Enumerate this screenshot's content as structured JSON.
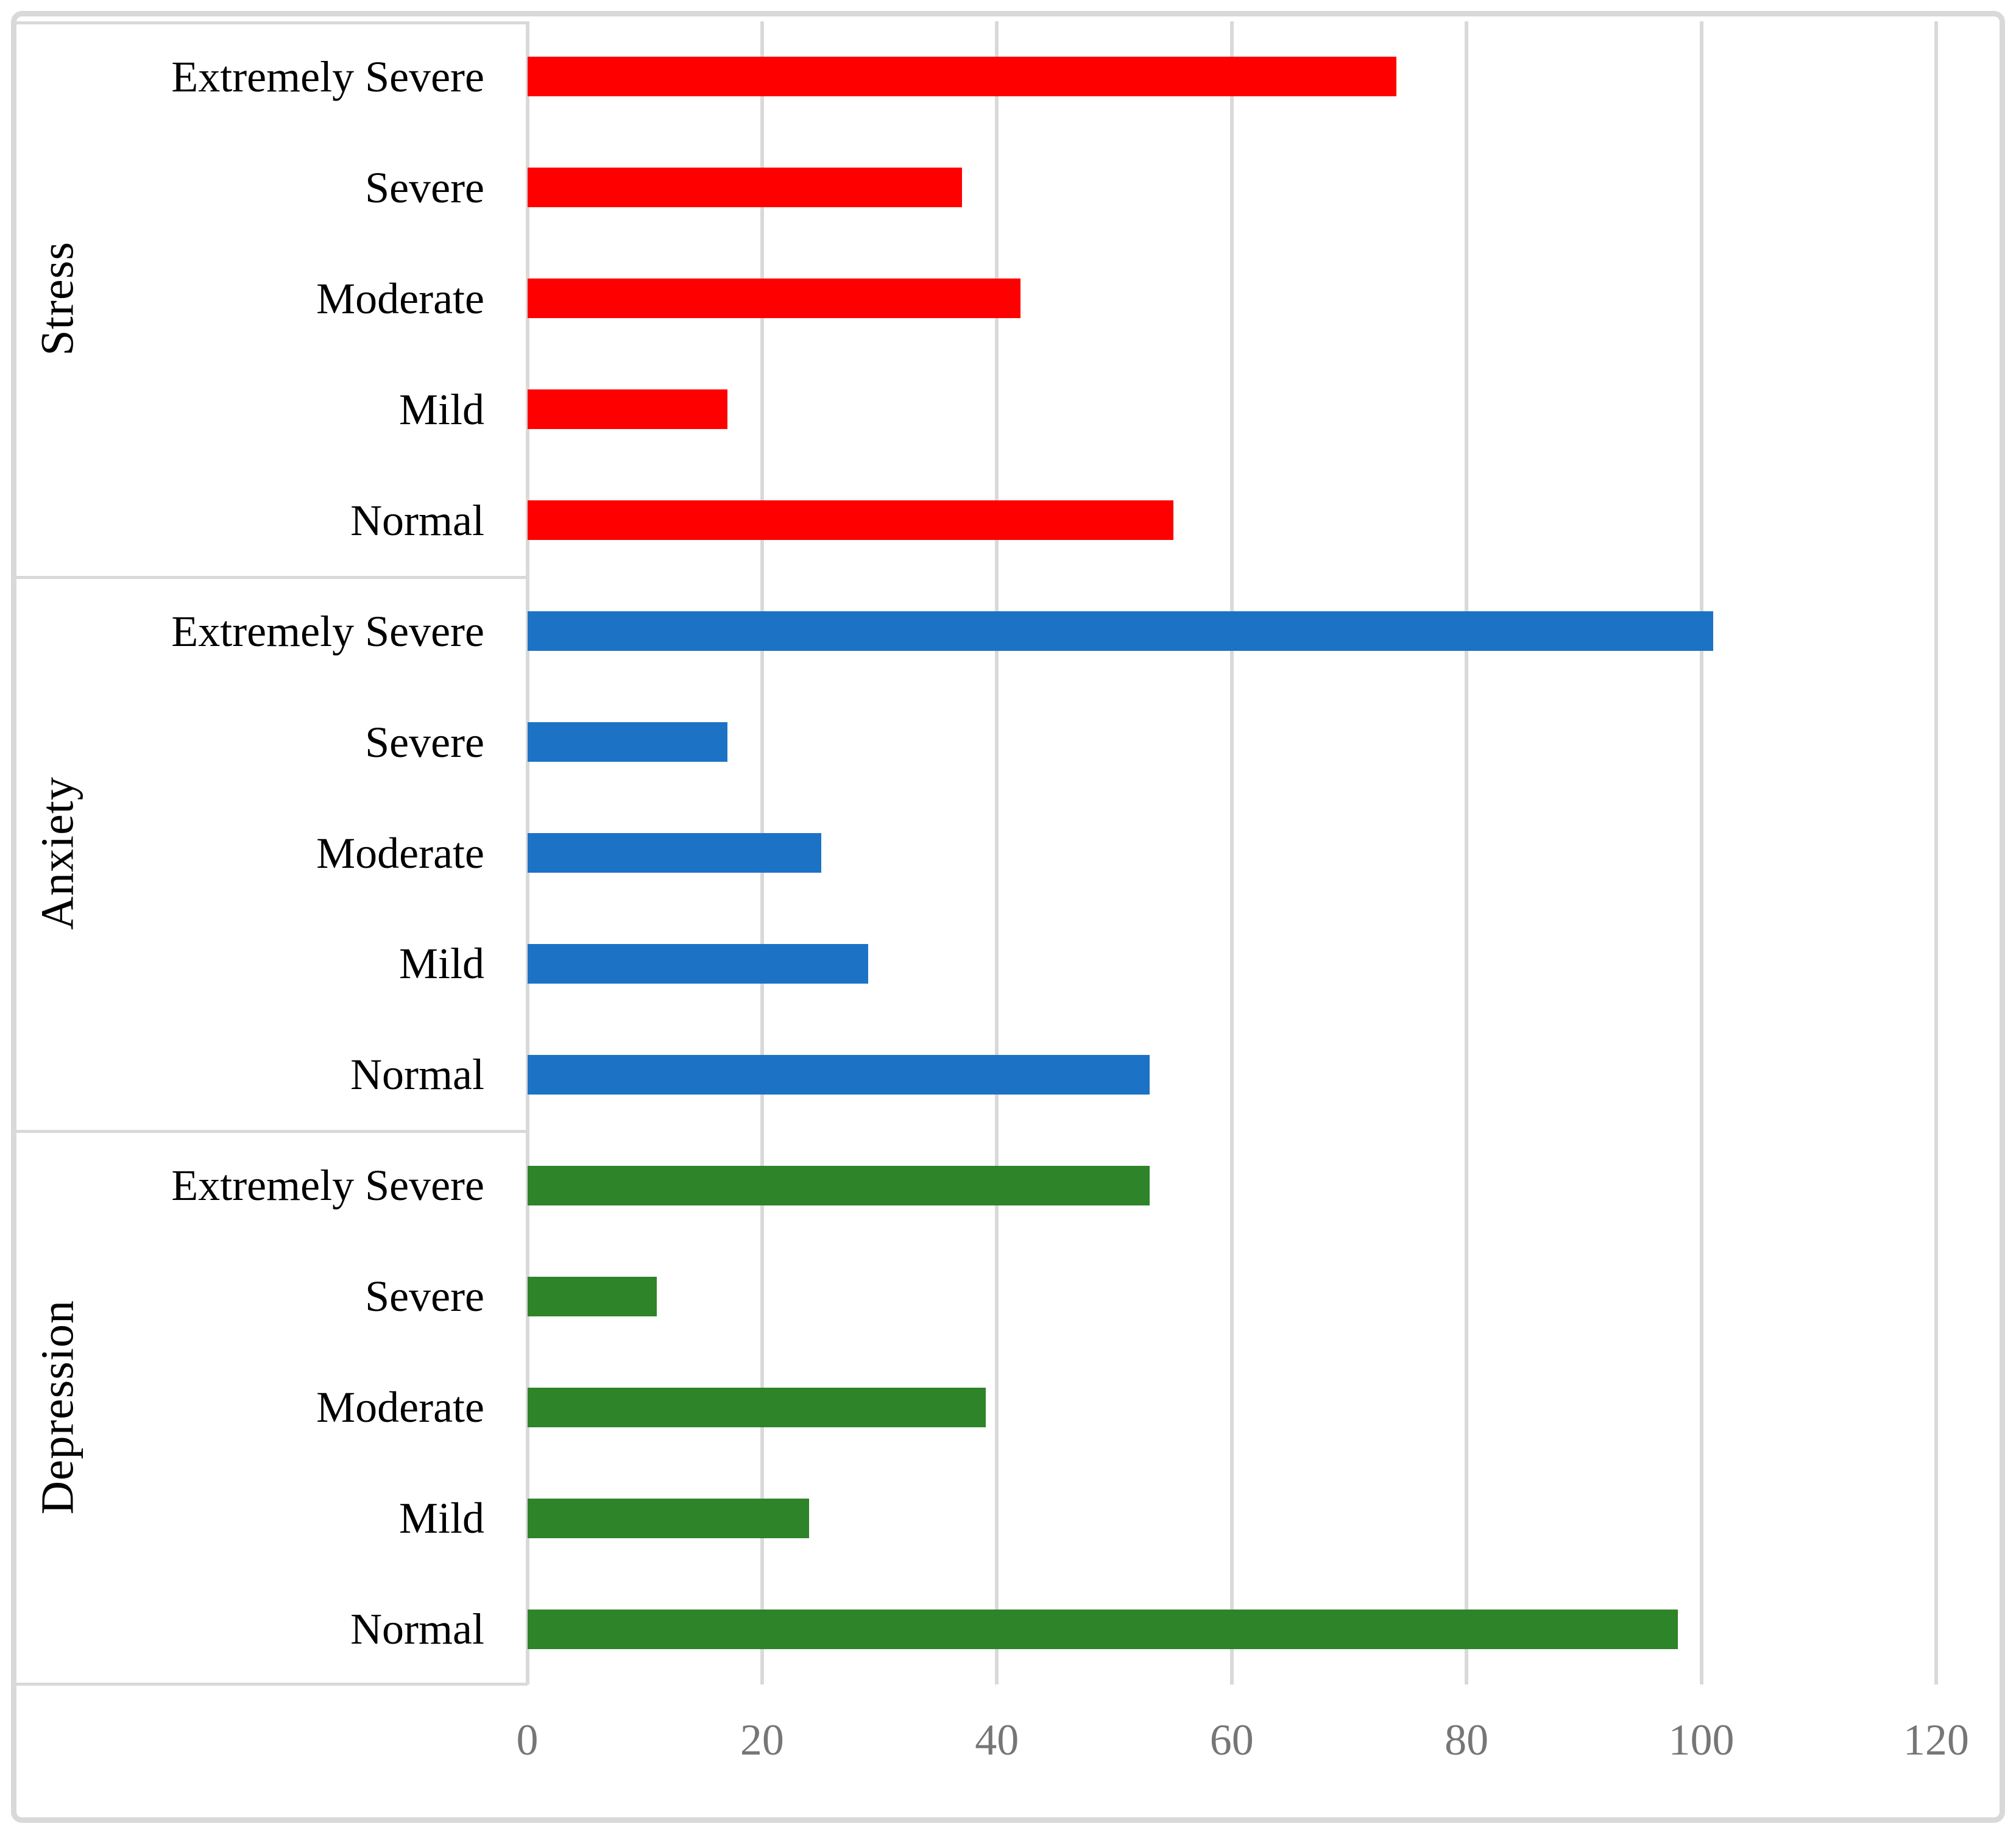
{
  "chart_data": {
    "type": "bar",
    "orientation": "horizontal",
    "title": "",
    "xlabel": "",
    "ylabel": "",
    "x_axis": {
      "min": 0,
      "max": 120,
      "ticks": [
        0,
        20,
        40,
        60,
        80,
        100,
        120
      ]
    },
    "grid": "vertical-gridlines-every-20",
    "legend_position": "none",
    "category_order_top_to_bottom": [
      "Extremely Severe",
      "Severe",
      "Moderate",
      "Mild",
      "Normal"
    ],
    "groups": [
      {
        "name": "Stress",
        "color": "#FF0000",
        "categories": [
          "Extremely Severe",
          "Severe",
          "Moderate",
          "Mild",
          "Normal"
        ],
        "values": [
          74,
          37,
          42,
          17,
          55
        ]
      },
      {
        "name": "Anxiety",
        "color": "#1C73C5",
        "categories": [
          "Extremely Severe",
          "Severe",
          "Moderate",
          "Mild",
          "Normal"
        ],
        "values": [
          101,
          17,
          25,
          29,
          53
        ]
      },
      {
        "name": "Depression",
        "color": "#2E8428",
        "categories": [
          "Extremely Severe",
          "Severe",
          "Moderate",
          "Mild",
          "Normal"
        ],
        "values": [
          53,
          11,
          39,
          24,
          98
        ]
      }
    ]
  },
  "style": {
    "gridline_color": "#D9D9D9",
    "frame_color": "#D9D9D9",
    "tick_label_color": "#767676",
    "category_label_color": "#000000",
    "background_color": "#FFFFFF"
  }
}
